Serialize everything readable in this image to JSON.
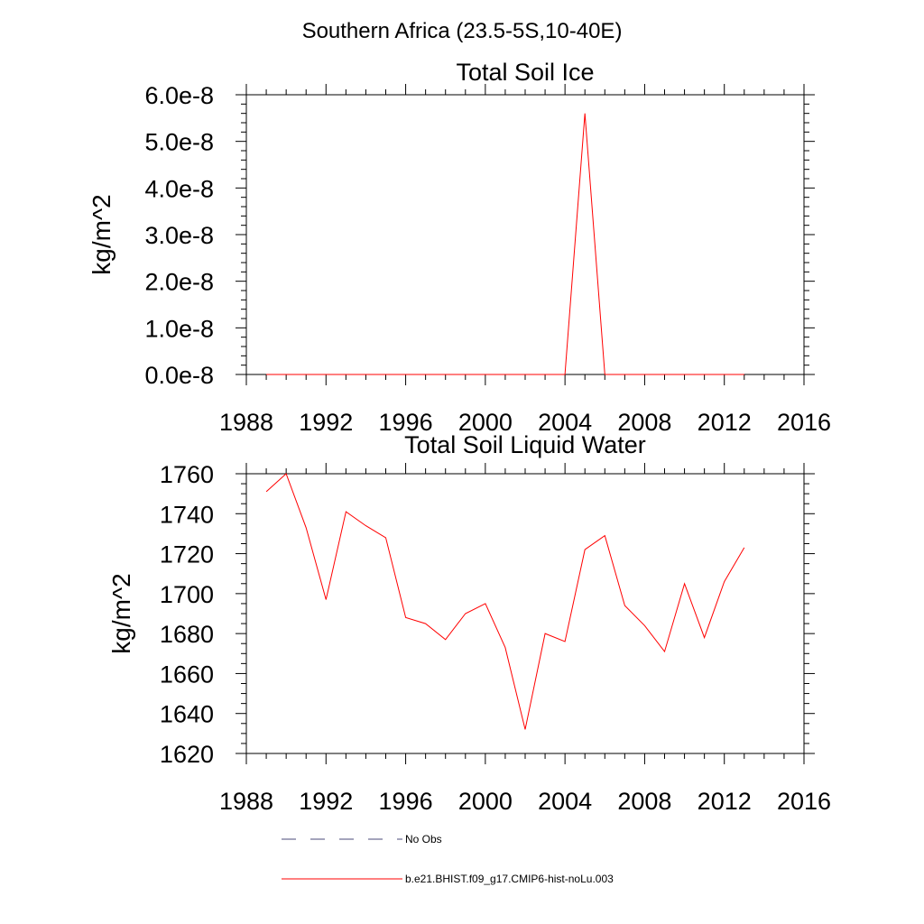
{
  "figure": {
    "suptitle": "Southern Africa (23.5-5S,10-40E)"
  },
  "chart_data": [
    {
      "type": "line",
      "title": "Total Soil Ice",
      "xlabel": "",
      "ylabel": "kg/m^2",
      "xlim": [
        1988,
        2016
      ],
      "ylim": [
        0,
        6e-08
      ],
      "xticks": [
        1988,
        1992,
        1996,
        2000,
        2004,
        2008,
        2012,
        2016
      ],
      "xtick_labels": [
        "1988",
        "1992",
        "1996",
        "2000",
        "2004",
        "2008",
        "2012",
        "2016"
      ],
      "yticks": [
        0,
        1e-08,
        2e-08,
        3e-08,
        4e-08,
        5e-08,
        6e-08
      ],
      "ytick_labels": [
        "0.0e-8",
        "1.0e-8",
        "2.0e-8",
        "3.0e-8",
        "4.0e-8",
        "5.0e-8",
        "6.0e-8"
      ],
      "grid": false,
      "series": [
        {
          "name": "b.e21.BHIST.f09_g17.CMIP6-hist-noLu.003",
          "color": "#ff0000",
          "x": [
            1989,
            1990,
            1991,
            1992,
            1993,
            1994,
            1995,
            1996,
            1997,
            1998,
            1999,
            2000,
            2001,
            2002,
            2003,
            2004,
            2005,
            2006,
            2007,
            2008,
            2009,
            2010,
            2011,
            2012,
            2013
          ],
          "values": [
            0,
            0,
            0,
            0,
            0,
            0,
            0,
            0,
            0,
            0,
            0,
            0,
            0,
            0,
            0,
            0,
            5.6e-08,
            0,
            0,
            0,
            0,
            0,
            0,
            0,
            0
          ]
        }
      ]
    },
    {
      "type": "line",
      "title": "Total Soil Liquid Water",
      "xlabel": "",
      "ylabel": "kg/m^2",
      "xlim": [
        1988,
        2016
      ],
      "ylim": [
        1620,
        1760
      ],
      "xticks": [
        1988,
        1992,
        1996,
        2000,
        2004,
        2008,
        2012,
        2016
      ],
      "xtick_labels": [
        "1988",
        "1992",
        "1996",
        "2000",
        "2004",
        "2008",
        "2012",
        "2016"
      ],
      "yticks": [
        1620,
        1640,
        1660,
        1680,
        1700,
        1720,
        1740,
        1760
      ],
      "ytick_labels": [
        "1620",
        "1640",
        "1660",
        "1680",
        "1700",
        "1720",
        "1740",
        "1760"
      ],
      "grid": false,
      "series": [
        {
          "name": "b.e21.BHIST.f09_g17.CMIP6-hist-noLu.003",
          "color": "#ff0000",
          "x": [
            1989,
            1990,
            1991,
            1992,
            1993,
            1994,
            1995,
            1996,
            1997,
            1998,
            1999,
            2000,
            2001,
            2002,
            2003,
            2004,
            2005,
            2006,
            2007,
            2008,
            2009,
            2010,
            2011,
            2012,
            2013
          ],
          "values": [
            1751,
            1760,
            1733,
            1697,
            1741,
            1734,
            1728,
            1688,
            1685,
            1677,
            1690,
            1695,
            1673,
            1632,
            1680,
            1676,
            1722,
            1729,
            1694,
            1684,
            1671,
            1705,
            1678,
            1706,
            1723
          ]
        }
      ]
    }
  ],
  "legend": {
    "entries": [
      {
        "label": "No Obs",
        "style": "dashed",
        "color": "#4a4a7a"
      },
      {
        "label": "b.e21.BHIST.f09_g17.CMIP6-hist-noLu.003",
        "style": "solid",
        "color": "#ff0000"
      }
    ]
  }
}
